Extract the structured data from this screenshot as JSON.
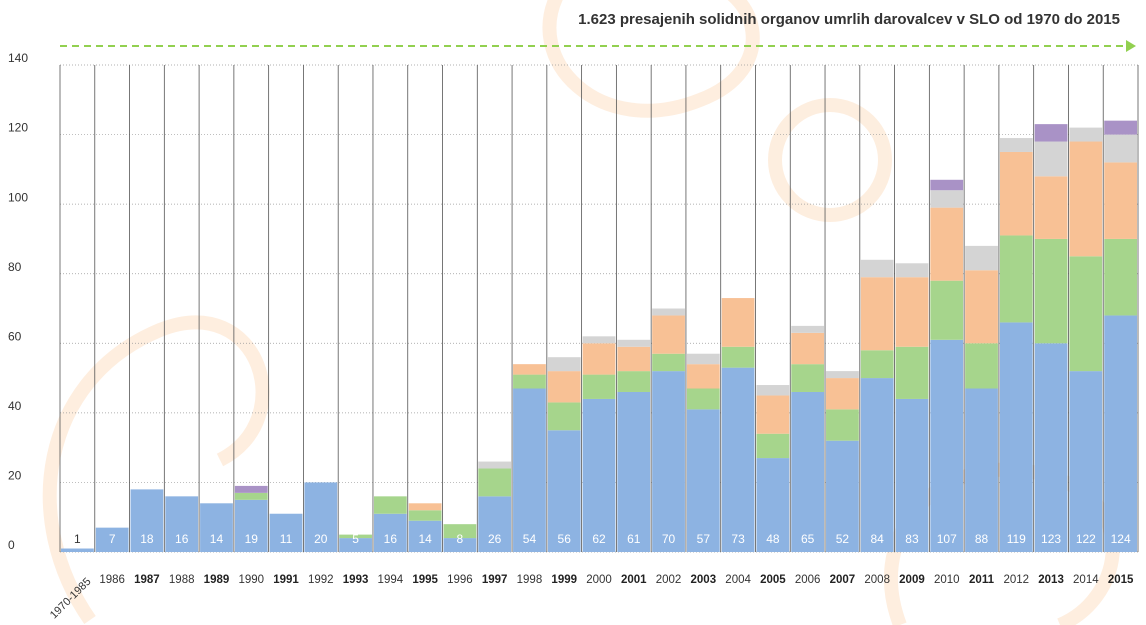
{
  "chart_data": {
    "type": "stacked_bar",
    "title": "1.623 presajenih solidnih organov umrlih darovalcev v SLO od 1970 do 2015",
    "categories": [
      "1970-1985",
      "1986",
      "1987",
      "1988",
      "1989",
      "1990",
      "1991",
      "1992",
      "1993",
      "1994",
      "1995",
      "1996",
      "1997",
      "1998",
      "1999",
      "2000",
      "2001",
      "2002",
      "2003",
      "2004",
      "2005",
      "2006",
      "2007",
      "2008",
      "2009",
      "2010",
      "2011",
      "2012",
      "2013",
      "2014",
      "2015"
    ],
    "series": [
      {
        "color": "#8db3e2",
        "values": [
          1,
          7,
          18,
          16,
          14,
          15,
          11,
          20,
          4,
          11,
          9,
          4,
          16,
          47,
          35,
          44,
          46,
          52,
          41,
          53,
          27,
          46,
          32,
          50,
          44,
          61,
          47,
          66,
          60,
          52,
          68
        ]
      },
      {
        "color": "#a6d58c",
        "values": [
          0,
          0,
          0,
          0,
          0,
          2,
          0,
          0,
          1,
          5,
          3,
          4,
          8,
          4,
          8,
          7,
          6,
          5,
          6,
          6,
          7,
          8,
          9,
          8,
          15,
          17,
          13,
          25,
          30,
          33,
          22
        ]
      },
      {
        "color": "#f8c195",
        "values": [
          0,
          0,
          0,
          0,
          0,
          0,
          0,
          0,
          0,
          0,
          2,
          0,
          0,
          3,
          9,
          9,
          7,
          11,
          7,
          14,
          11,
          9,
          9,
          21,
          20,
          21,
          21,
          24,
          18,
          33,
          22
        ]
      },
      {
        "color": "#d4d4d4",
        "values": [
          0,
          0,
          0,
          0,
          0,
          0,
          0,
          0,
          0,
          0,
          0,
          0,
          2,
          0,
          4,
          2,
          2,
          2,
          3,
          0,
          3,
          2,
          2,
          5,
          4,
          5,
          7,
          4,
          10,
          4,
          8
        ]
      },
      {
        "color": "#a992c6",
        "values": [
          0,
          0,
          0,
          0,
          0,
          2,
          0,
          0,
          0,
          0,
          0,
          0,
          0,
          0,
          0,
          0,
          0,
          0,
          0,
          0,
          0,
          0,
          0,
          0,
          0,
          3,
          0,
          0,
          5,
          0,
          4
        ]
      }
    ],
    "totals": [
      1,
      7,
      18,
      16,
      14,
      19,
      11,
      20,
      5,
      16,
      14,
      8,
      26,
      54,
      56,
      62,
      61,
      70,
      57,
      73,
      48,
      65,
      52,
      84,
      83,
      107,
      88,
      119,
      123,
      122,
      124
    ],
    "ylim": [
      0,
      140
    ],
    "yticks": [
      0,
      20,
      40,
      60,
      80,
      100,
      120,
      140
    ],
    "grid": true
  }
}
